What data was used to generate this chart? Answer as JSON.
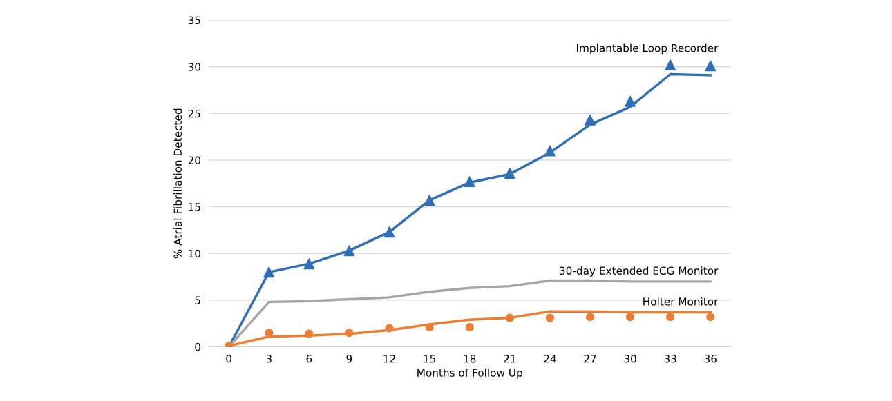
{
  "chart_data": {
    "type": "line",
    "xlabel": "Months of Follow Up",
    "ylabel": "% Atrial Fibrillation Detected",
    "x": [
      0,
      3,
      6,
      9,
      12,
      15,
      18,
      21,
      24,
      27,
      30,
      33,
      36
    ],
    "xlim": [
      -1.5,
      37.5
    ],
    "xticks": [
      0,
      3,
      6,
      9,
      12,
      15,
      18,
      21,
      24,
      27,
      30,
      33,
      36
    ],
    "ylim": [
      0,
      35
    ],
    "yticks": [
      0,
      5,
      10,
      15,
      20,
      25,
      30,
      35
    ],
    "grid": "y",
    "legend": false,
    "series": [
      {
        "name": "Implantable Loop Recorder",
        "color": "#2f6fba",
        "marker": "none",
        "values": [
          0,
          8,
          8.9,
          10.3,
          12.3,
          15.7,
          17.6,
          18.5,
          20.8,
          23.8,
          25.7,
          29.2,
          29.1
        ]
      },
      {
        "type": "scatter",
        "color": "#2f6fba",
        "marker": "triangle",
        "values": [
          0,
          8,
          8.9,
          10.3,
          12.3,
          15.7,
          17.7,
          18.6,
          21,
          24.3,
          26.3,
          30.2,
          30.1
        ]
      },
      {
        "name": "30-day Extended ECG Monitor",
        "color": "#a5a5a5",
        "marker": "none",
        "values": [
          0,
          4.8,
          4.9,
          5.1,
          5.3,
          5.9,
          6.3,
          6.5,
          7.1,
          7.1,
          7.0,
          7.0,
          7.0
        ]
      },
      {
        "name": "Holter Monitor",
        "color": "#ed7d31",
        "marker": "none",
        "values": [
          0.1,
          1.1,
          1.2,
          1.4,
          1.8,
          2.4,
          2.9,
          3.1,
          3.8,
          3.8,
          3.7,
          3.7,
          3.7
        ]
      },
      {
        "type": "scatter",
        "color": "#ed7d31",
        "marker": "circle",
        "values": [
          0.1,
          1.5,
          1.4,
          1.5,
          2.0,
          2.1,
          2.1,
          3.1,
          3.1,
          3.2,
          3.2,
          3.2,
          3.2
        ]
      }
    ]
  }
}
